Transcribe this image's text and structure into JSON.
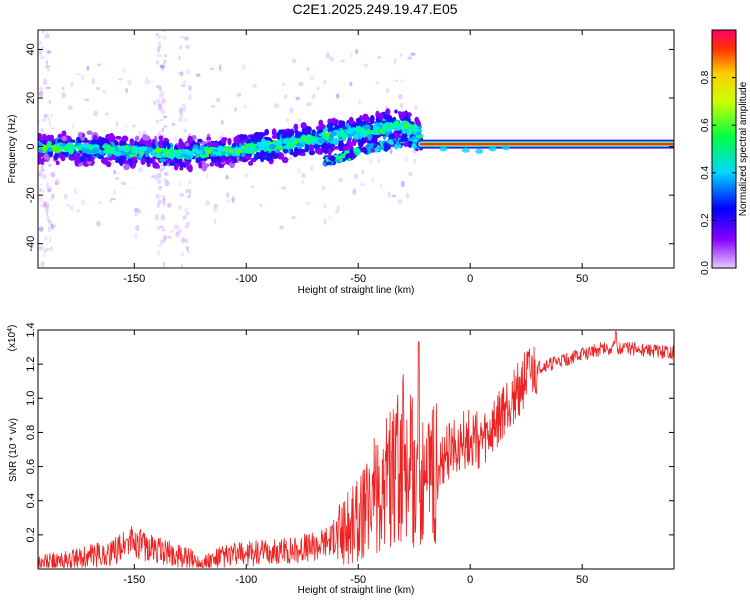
{
  "title": "C2E1.2025.249.19.47.E05",
  "colors": {
    "snr_line": "#ee2222",
    "axis": "#000000",
    "colormap": [
      "#e6ccff",
      "#8800ff",
      "#0000ff",
      "#00d5ff",
      "#00ff44",
      "#ccff00",
      "#ff3300",
      "#ff0066"
    ]
  },
  "chart_data": [
    {
      "name": "spectrogram",
      "type": "heatmap",
      "title": "C2E1.2025.249.19.47.E05",
      "xlabel": "Height of straight line (km)",
      "ylabel": "Frequency (Hz)",
      "xlim": [
        -193,
        91
      ],
      "ylim": [
        -50,
        48
      ],
      "xticks": [
        -150,
        -100,
        -50,
        0,
        50
      ],
      "xtick_labels": [
        "-150",
        "-100",
        "-50",
        "0",
        "50"
      ],
      "yticks": [
        -40,
        -20,
        0,
        20,
        40
      ],
      "ytick_labels": [
        "-40",
        "-20",
        "0",
        "20",
        "40"
      ],
      "colorbar": {
        "label": "Normalized spectral amplitude",
        "range": [
          0,
          1
        ],
        "ticks": [
          0.0,
          0.2,
          0.4,
          0.6,
          0.8
        ],
        "tick_labels": [
          "0.0",
          "0.2",
          "0.4",
          "0.6",
          "0.8"
        ]
      },
      "ridges": [
        {
          "name": "main trace",
          "x": [
            -193,
            -170,
            -150,
            -130,
            -110,
            -90,
            -70,
            -50,
            -30,
            -22
          ],
          "y": [
            0,
            -1,
            -2,
            -3,
            -2,
            0,
            3,
            6,
            9,
            5
          ]
        },
        {
          "name": "secondary trace",
          "x": [
            -65,
            -55,
            -45,
            -35,
            -28,
            -22
          ],
          "y": [
            -6,
            -4,
            -1,
            1,
            2,
            1
          ]
        },
        {
          "name": "carrier",
          "x": [
            -22,
            91
          ],
          "y": [
            1,
            1
          ]
        }
      ]
    },
    {
      "name": "snr",
      "type": "line",
      "xlabel": "Height of straight line (km)",
      "ylabel": "SNR (10 * v/v)",
      "y_multiplier": "(x10",
      "y_multiplier_exp": "4",
      "y_multiplier_close": ")",
      "xlim": [
        -193,
        91
      ],
      "ylim": [
        0,
        1.4
      ],
      "xticks": [
        -150,
        -100,
        -50,
        0,
        50
      ],
      "xtick_labels": [
        "-150",
        "-100",
        "-50",
        "0",
        "50"
      ],
      "yticks": [
        0.2,
        0.4,
        0.6,
        0.8,
        1.0,
        1.2,
        1.4
      ],
      "ytick_labels": [
        "0.2",
        "0.4",
        "0.6",
        "0.8",
        "1.0",
        "1.2",
        "1.4"
      ],
      "envelope": {
        "x": [
          -193,
          -180,
          -170,
          -160,
          -152,
          -145,
          -135,
          -125,
          -118,
          -110,
          -100,
          -90,
          -80,
          -70,
          -60,
          -50,
          -40,
          -35,
          -30,
          -25,
          -21,
          -18,
          -15,
          -10,
          -5,
          0,
          5,
          10,
          15,
          20,
          25,
          30,
          40,
          50,
          60,
          70,
          80,
          91
        ],
        "y": [
          0.04,
          0.05,
          0.08,
          0.1,
          0.18,
          0.14,
          0.1,
          0.06,
          0.04,
          0.08,
          0.1,
          0.1,
          0.12,
          0.14,
          0.2,
          0.3,
          0.5,
          0.6,
          0.65,
          0.6,
          0.5,
          0.5,
          0.55,
          0.7,
          0.75,
          0.8,
          0.75,
          0.82,
          0.95,
          1.05,
          1.12,
          1.18,
          1.22,
          1.26,
          1.3,
          1.3,
          1.28,
          1.27
        ]
      },
      "notes": "noisy signal; peaks near 1.33 at x=-23 and 1.39 at x=65"
    }
  ]
}
